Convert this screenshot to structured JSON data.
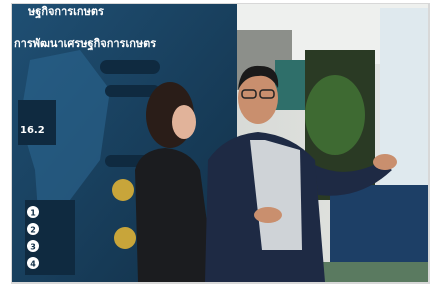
{
  "image": {
    "board": {
      "heading_top": "ษฐกิจการเกษตร",
      "heading": "การพัฒนาเศรษฐกิจการเกษตร",
      "figure": "16.2",
      "list_numbers": [
        "1",
        "2",
        "3",
        "4"
      ]
    }
  }
}
